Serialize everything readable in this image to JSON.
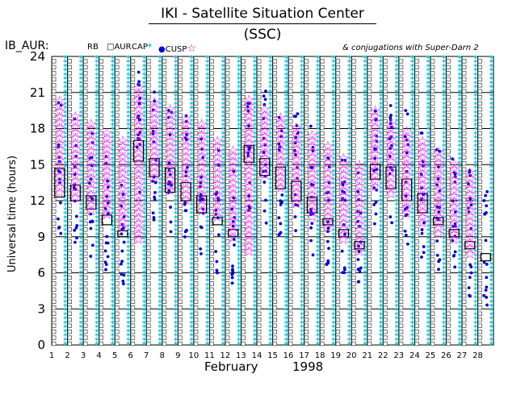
{
  "title": "IKI - Satellite Situation Center (SSC)",
  "satellite": "IB_AUR:",
  "note": "& conjugations with Super-Darn 2",
  "legend": [
    {
      "label": "RB",
      "symbol": "box",
      "color": "#000000"
    },
    {
      "label": "AUR",
      "symbol": "square",
      "color": "#000000"
    },
    {
      "label": "CAP",
      "symbol": "star",
      "color": "#00c8d8"
    },
    {
      "label": "CUSP",
      "symbol": "dot",
      "color": "#0000e0"
    },
    {
      "label": "",
      "symbol": "magenta-star",
      "color": "#ee00ee"
    }
  ],
  "colors": {
    "cap": "#00c8d8",
    "cusp": "#0000e0",
    "conj": "#ee00ee",
    "aur": "#555555",
    "rb": "#000000"
  },
  "chart_data": {
    "type": "scatter",
    "ylabel": "Universal time (hours)",
    "xlabel": "February",
    "year": "1998",
    "ylim": [
      0,
      24
    ],
    "xlim": [
      1,
      29
    ],
    "yticks": [
      0,
      3,
      6,
      9,
      12,
      15,
      18,
      21,
      24
    ],
    "xticks": [
      1,
      2,
      3,
      4,
      5,
      6,
      7,
      8,
      9,
      10,
      11,
      12,
      13,
      14,
      15,
      16,
      17,
      18,
      19,
      20,
      21,
      22,
      23,
      24,
      25,
      26,
      27,
      28
    ],
    "grid": true,
    "rb_passes": [
      {
        "day": 2,
        "start": 12.3,
        "end": 14.7
      },
      {
        "day": 3,
        "start": 12.0,
        "end": 13.3
      },
      {
        "day": 4,
        "start": 11.3,
        "end": 12.4
      },
      {
        "day": 5,
        "start": 10.0,
        "end": 10.8
      },
      {
        "day": 6,
        "start": 9.0,
        "end": 9.5
      },
      {
        "day": 7,
        "start": 15.3,
        "end": 17.0
      },
      {
        "day": 8,
        "start": 14.0,
        "end": 15.5
      },
      {
        "day": 9,
        "start": 12.7,
        "end": 14.7
      },
      {
        "day": 10,
        "start": 12.0,
        "end": 13.5
      },
      {
        "day": 11,
        "start": 11.0,
        "end": 12.4
      },
      {
        "day": 12,
        "start": 10.0,
        "end": 10.6
      },
      {
        "day": 13,
        "start": 9.0,
        "end": 9.6
      },
      {
        "day": 14,
        "start": 15.2,
        "end": 16.6
      },
      {
        "day": 15,
        "start": 14.1,
        "end": 15.5
      },
      {
        "day": 16,
        "start": 13.0,
        "end": 14.8
      },
      {
        "day": 17,
        "start": 12.0,
        "end": 13.6
      },
      {
        "day": 18,
        "start": 11.0,
        "end": 12.3
      },
      {
        "day": 19,
        "start": 10.0,
        "end": 10.5
      },
      {
        "day": 20,
        "start": 9.0,
        "end": 9.6
      },
      {
        "day": 21,
        "start": 8.0,
        "end": 8.6
      },
      {
        "day": 22,
        "start": 13.8,
        "end": 15.0
      },
      {
        "day": 23,
        "start": 13.0,
        "end": 14.8
      },
      {
        "day": 24,
        "start": 12.0,
        "end": 13.8
      },
      {
        "day": 25,
        "start": 11.0,
        "end": 12.6
      },
      {
        "day": 26,
        "start": 10.0,
        "end": 10.6
      },
      {
        "day": 27,
        "start": 9.0,
        "end": 9.6
      },
      {
        "day": 28,
        "start": 8.0,
        "end": 8.6
      },
      {
        "day": 29,
        "start": 7.0,
        "end": 7.6
      }
    ],
    "conjugations": [
      {
        "day": 2,
        "start": 12.7,
        "end": 20.6
      },
      {
        "day": 3,
        "start": 12.3,
        "end": 19.4
      },
      {
        "day": 4,
        "start": 11.2,
        "end": 18.6
      },
      {
        "day": 5,
        "start": 10.9,
        "end": 17.8
      },
      {
        "day": 6,
        "start": 9.8,
        "end": 17.0
      },
      {
        "day": 7,
        "start": 8.8,
        "end": 21.4
      },
      {
        "day": 8,
        "start": 13.9,
        "end": 20.6
      },
      {
        "day": 9,
        "start": 12.9,
        "end": 20.0
      },
      {
        "day": 10,
        "start": 12.1,
        "end": 19.0
      },
      {
        "day": 11,
        "start": 11.2,
        "end": 18.4
      },
      {
        "day": 12,
        "start": 10.7,
        "end": 17.4
      },
      {
        "day": 13,
        "start": 9.0,
        "end": 16.3
      },
      {
        "day": 14,
        "start": 7.8,
        "end": 20.4
      },
      {
        "day": 15,
        "start": 14.2,
        "end": 19.9
      },
      {
        "day": 16,
        "start": 13.1,
        "end": 19.0
      },
      {
        "day": 17,
        "start": 11.8,
        "end": 18.4
      },
      {
        "day": 18,
        "start": 10.7,
        "end": 17.6
      },
      {
        "day": 19,
        "start": 9.8,
        "end": 16.6
      },
      {
        "day": 20,
        "start": 8.8,
        "end": 15.8
      },
      {
        "day": 21,
        "start": 7.8,
        "end": 15.0
      },
      {
        "day": 22,
        "start": 13.2,
        "end": 19.6
      },
      {
        "day": 23,
        "start": 12.6,
        "end": 18.8
      },
      {
        "day": 24,
        "start": 11.0,
        "end": 18.0
      },
      {
        "day": 25,
        "start": 10.2,
        "end": 17.0
      },
      {
        "day": 26,
        "start": 9.3,
        "end": 16.4
      },
      {
        "day": 27,
        "start": 8.8,
        "end": 15.4
      },
      {
        "day": 28,
        "start": 7.6,
        "end": 14.6
      }
    ]
  }
}
